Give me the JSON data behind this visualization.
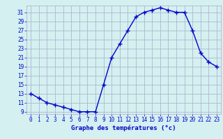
{
  "hours": [
    0,
    1,
    2,
    3,
    4,
    5,
    6,
    7,
    8,
    9,
    10,
    11,
    12,
    13,
    14,
    15,
    16,
    17,
    18,
    19,
    20,
    21,
    22,
    23
  ],
  "temperatures": [
    13,
    12,
    11,
    10.5,
    10,
    9.5,
    9,
    9,
    9,
    15,
    21,
    24,
    27,
    30,
    31,
    31.5,
    32,
    31.5,
    31,
    31,
    27,
    22,
    20,
    19
  ],
  "line_color": "#0000cc",
  "marker": "+",
  "marker_size": 4,
  "marker_linewidth": 1.0,
  "bg_color": "#d4f0f0",
  "grid_color": "#aaaacc",
  "xlabel": "Graphe des températures (°c)",
  "ylim": [
    8.5,
    32.5
  ],
  "xlim": [
    -0.5,
    23.5
  ],
  "yticks": [
    9,
    11,
    13,
    15,
    17,
    19,
    21,
    23,
    25,
    27,
    29,
    31
  ],
  "xtick_labels": [
    "0",
    "1",
    "2",
    "3",
    "4",
    "5",
    "6",
    "7",
    "8",
    "9",
    "10",
    "11",
    "12",
    "13",
    "14",
    "15",
    "16",
    "17",
    "18",
    "19",
    "20",
    "21",
    "22",
    "23"
  ],
  "label_color": "#0000cc",
  "tick_color": "#0000cc",
  "tick_fontsize": 5.5,
  "xlabel_fontsize": 6.5,
  "linewidth": 1.0
}
